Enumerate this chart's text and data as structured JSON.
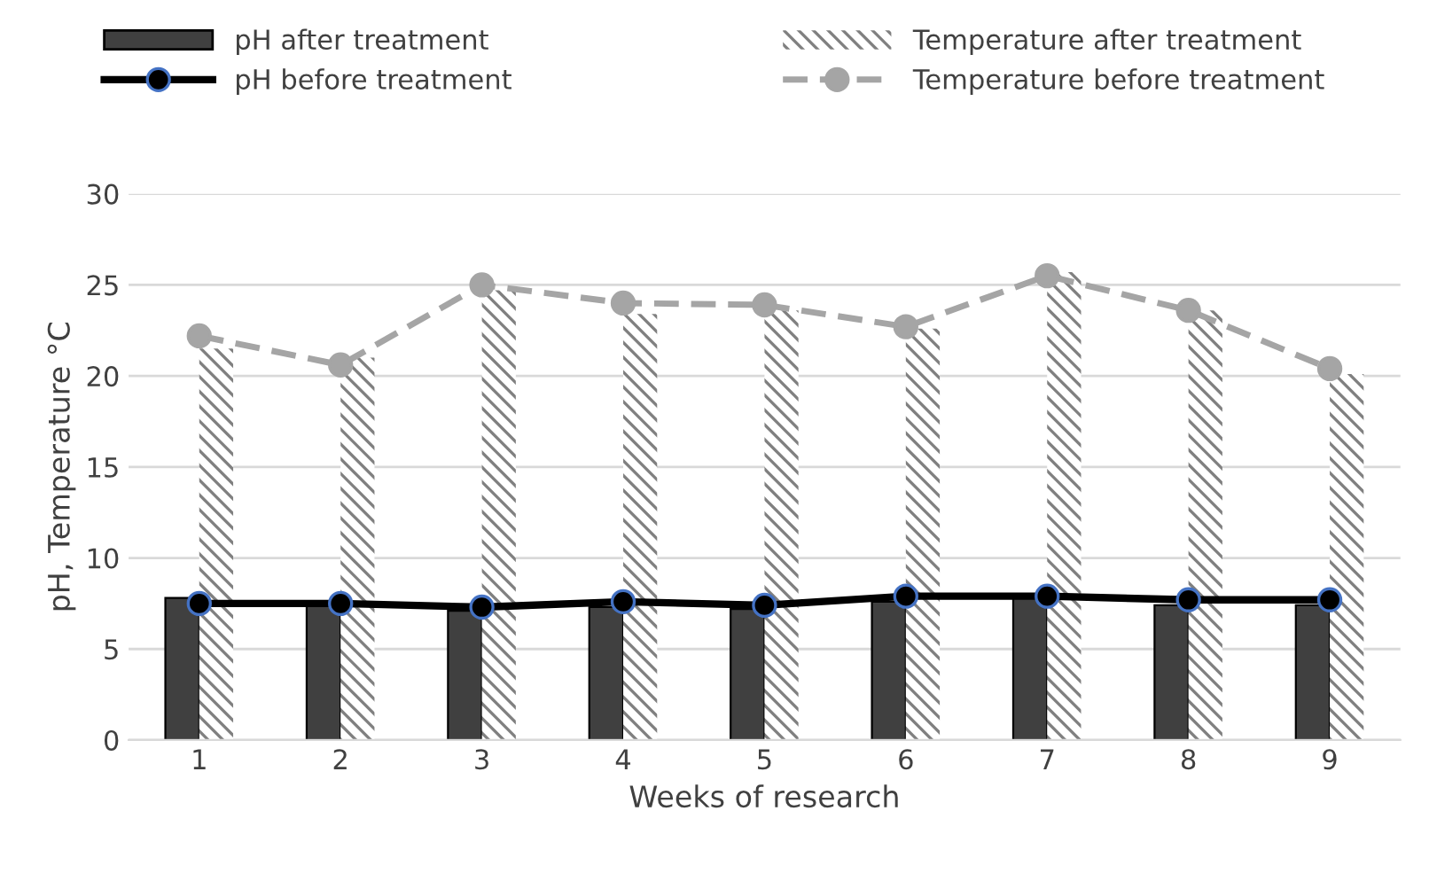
{
  "chart_data": {
    "type": "bar",
    "xlabel": "Weeks of research",
    "ylabel": "pH, Temperature °C",
    "categories": [
      "1",
      "2",
      "3",
      "4",
      "5",
      "6",
      "7",
      "8",
      "9"
    ],
    "series": [
      {
        "name": "pH after treatment",
        "color": "#404040",
        "values": [
          7.8,
          7.4,
          7.1,
          7.3,
          7.2,
          7.6,
          7.8,
          7.4,
          7.4
        ]
      },
      {
        "name": "Temperature after treatment",
        "color": "#808080",
        "values": [
          21.5,
          21.0,
          24.7,
          23.4,
          23.6,
          22.6,
          25.7,
          23.6,
          20.1
        ]
      },
      {
        "name": "pH before treatment",
        "type": "line",
        "color": "#000000",
        "marker": "circle",
        "line_style": "solid",
        "values": [
          7.5,
          7.5,
          7.3,
          7.6,
          7.4,
          7.9,
          7.9,
          7.7,
          7.7
        ]
      },
      {
        "name": "Temperature before treatment",
        "type": "line",
        "color": "#a5a5a5",
        "marker": "circle",
        "line_style": "dashed",
        "values": [
          22.2,
          20.6,
          25.0,
          24.0,
          23.9,
          22.7,
          25.5,
          23.6,
          20.4
        ]
      }
    ],
    "ylim": [
      0,
      30
    ],
    "yticks": [
      0,
      5,
      10,
      15,
      20,
      25,
      30
    ],
    "grid": "y",
    "legend": "top"
  }
}
